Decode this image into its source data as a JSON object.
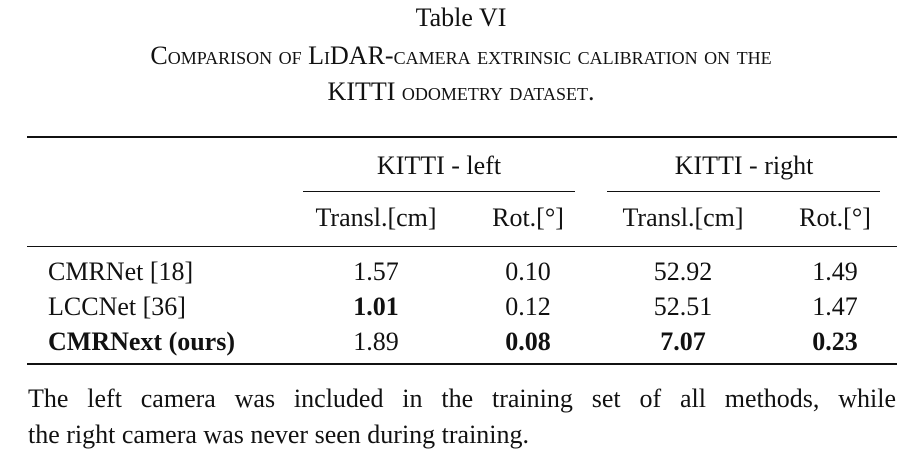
{
  "caption": {
    "label": "Table VI",
    "lines": [
      "Comparison of LiDAR-camera extrinsic calibration on the",
      "KITTI odometry dataset."
    ]
  },
  "table": {
    "groups": [
      "KITTI - left",
      "KITTI - right"
    ],
    "subheaders": [
      "Transl.[cm]",
      "Rot.[°]",
      "Transl.[cm]",
      "Rot.[°]"
    ],
    "rows": [
      {
        "cells": [
          "CMRNet [18]",
          "1.57",
          "0.10",
          "52.92",
          "1.49"
        ],
        "bold": [
          false,
          false,
          false,
          false,
          false
        ]
      },
      {
        "cells": [
          "LCCNet [36]",
          "1.01",
          "0.12",
          "52.51",
          "1.47"
        ],
        "bold": [
          false,
          true,
          false,
          false,
          false
        ]
      },
      {
        "cells": [
          "CMRNext (ours)",
          "1.89",
          "0.08",
          "7.07",
          "0.23"
        ],
        "bold": [
          true,
          false,
          true,
          true,
          true
        ]
      }
    ]
  },
  "note": [
    "The left camera was included in the training set of all methods, while",
    "the right camera was never seen during training."
  ]
}
